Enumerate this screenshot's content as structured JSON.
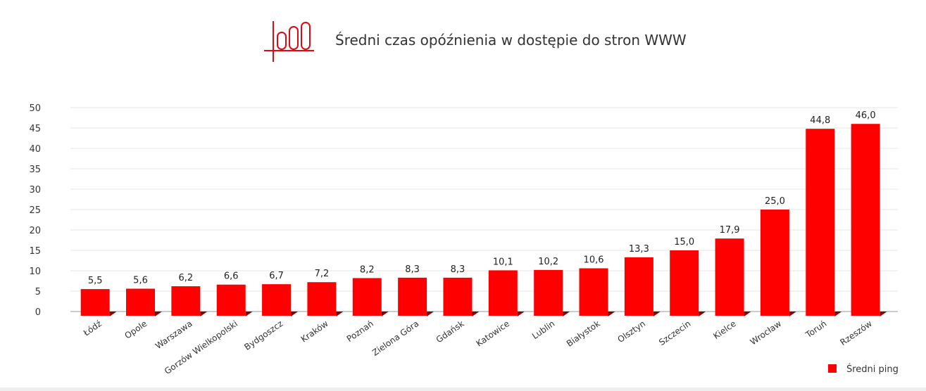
{
  "chart_data": {
    "type": "bar",
    "title": "Średni czas opóźnienia w dostępie do stron WWW",
    "categories": [
      "Łódź",
      "Opole",
      "Warszawa",
      "Gorzów Wielkopolski",
      "Bydgoszcz",
      "Kraków",
      "Poznań",
      "Zielona Góra",
      "Gdańsk",
      "Katowice",
      "Lublin",
      "Białystok",
      "Olsztyn",
      "Szczecin",
      "Kielce",
      "Wrocław",
      "Toruń",
      "Rzeszów"
    ],
    "series": [
      {
        "name": "Średni ping",
        "values": [
          5.5,
          5.6,
          6.2,
          6.6,
          6.7,
          7.2,
          8.2,
          8.3,
          8.3,
          10.1,
          10.2,
          10.6,
          13.3,
          15.0,
          17.9,
          25.0,
          44.8,
          46.0
        ],
        "color": "#ff0000"
      }
    ],
    "data_labels": [
      "5,5",
      "5,6",
      "6,2",
      "6,6",
      "6,7",
      "7,2",
      "8,2",
      "8,3",
      "8,3",
      "10,1",
      "10,2",
      "10,6",
      "13,3",
      "15,0",
      "17,9",
      "25,0",
      "44,8",
      "46,0"
    ],
    "xlabel": "",
    "ylabel": "",
    "ylim": [
      0,
      50
    ],
    "yticks": [
      0,
      5,
      10,
      15,
      20,
      25,
      30,
      35,
      40,
      45,
      50
    ],
    "grid": true,
    "legend": "bottom-right",
    "icon": "bar-chart-icon",
    "accent_color": "#e30613"
  }
}
